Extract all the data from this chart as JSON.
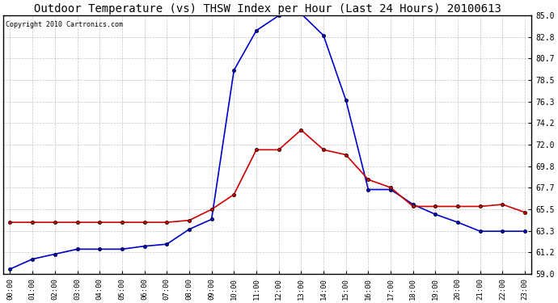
{
  "title": "Outdoor Temperature (vs) THSW Index per Hour (Last 24 Hours) 20100613",
  "copyright": "Copyright 2010 Cartronics.com",
  "hours": [
    0,
    1,
    2,
    3,
    4,
    5,
    6,
    7,
    8,
    9,
    10,
    11,
    12,
    13,
    14,
    15,
    16,
    17,
    18,
    19,
    20,
    21,
    22,
    23
  ],
  "temp_red": [
    64.2,
    64.2,
    64.2,
    64.2,
    64.2,
    64.2,
    64.2,
    64.2,
    64.4,
    65.5,
    67.0,
    71.5,
    71.5,
    73.5,
    71.5,
    71.0,
    68.5,
    67.7,
    65.8,
    65.8,
    65.8,
    65.8,
    66.0,
    65.2
  ],
  "thsw_blue": [
    59.5,
    60.5,
    61.0,
    61.5,
    61.5,
    61.5,
    61.8,
    62.0,
    63.5,
    64.5,
    79.5,
    83.5,
    85.0,
    85.2,
    83.0,
    76.5,
    67.5,
    67.5,
    66.0,
    65.0,
    64.2,
    63.3,
    63.3,
    63.3
  ],
  "ylim": [
    59.0,
    85.0
  ],
  "yticks": [
    59.0,
    61.2,
    63.3,
    65.5,
    67.7,
    69.8,
    72.0,
    74.2,
    76.3,
    78.5,
    80.7,
    82.8,
    85.0
  ],
  "ytick_labels": [
    "59.0",
    "61.2",
    "63.3",
    "65.5",
    "67.7",
    "69.8",
    "72.0",
    "74.2",
    "76.3",
    "78.5",
    "80.7",
    "82.8",
    "85.0"
  ],
  "bg_color": "#ffffff",
  "plot_bg_color": "#ffffff",
  "grid_color": "#aaaaaa",
  "line_color_red": "#cc0000",
  "line_color_blue": "#0000cc",
  "title_fontsize": 10,
  "copyright_fontsize": 6,
  "figwidth": 6.9,
  "figheight": 3.75,
  "dpi": 100
}
